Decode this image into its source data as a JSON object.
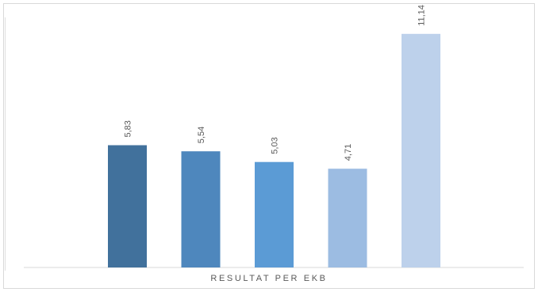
{
  "chart_data": {
    "type": "bar",
    "categories": [
      "",
      "",
      "",
      "",
      ""
    ],
    "values": [
      5.83,
      5.54,
      5.03,
      4.71,
      11.14
    ],
    "data_labels": [
      "5,83",
      "5,54",
      "5,03",
      "4,71",
      "11,14"
    ],
    "colors": [
      "#41719c",
      "#4e87bd",
      "#5b9bd5",
      "#9cbce2",
      "#bdd1eb"
    ],
    "title": "",
    "xlabel": "RESULTAT PER EKB",
    "ylabel": "",
    "ylim": [
      0,
      12
    ],
    "grid": false,
    "legend": "none"
  }
}
